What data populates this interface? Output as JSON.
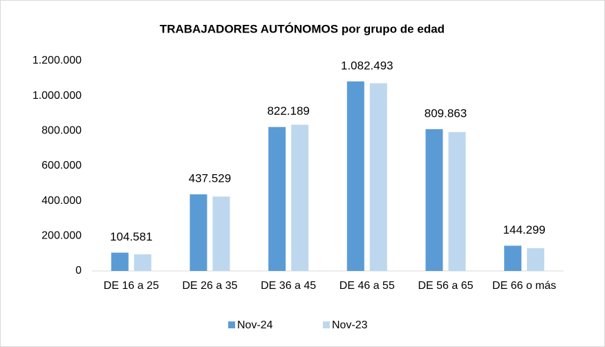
{
  "chart_data": {
    "type": "bar",
    "title": "TRABAJADORES AUTÓNOMOS por grupo de edad",
    "categories": [
      "DE 16 a 25",
      "DE 26 a 35",
      "DE 36 a 45",
      "DE 46 a 55",
      "DE 56 a 65",
      "DE 66 o más"
    ],
    "series": [
      {
        "name": "Nov-24",
        "color": "#5b9bd5",
        "values": [
          104581,
          437529,
          822189,
          1082493,
          809863,
          144299
        ],
        "value_labels": [
          "104.581",
          "437.529",
          "822.189",
          "1.082.493",
          "809.863",
          "144.299"
        ]
      },
      {
        "name": "Nov-23",
        "color": "#bdd7ee",
        "values": [
          95000,
          425000,
          835000,
          1072000,
          793000,
          130000
        ]
      }
    ],
    "ylim": [
      0,
      1200000
    ],
    "yticks": [
      0,
      {
        "value": 200000,
        "label": "200.000"
      },
      {
        "value": 400000,
        "label": "400.000"
      },
      {
        "value": 600000,
        "label": "600.000"
      },
      {
        "value": 800000,
        "label": "800.000"
      },
      {
        "value": 1000000,
        "label": "1.000.000"
      },
      {
        "value": 1200000,
        "label": "1.200.000"
      }
    ],
    "legend": "bottom"
  }
}
